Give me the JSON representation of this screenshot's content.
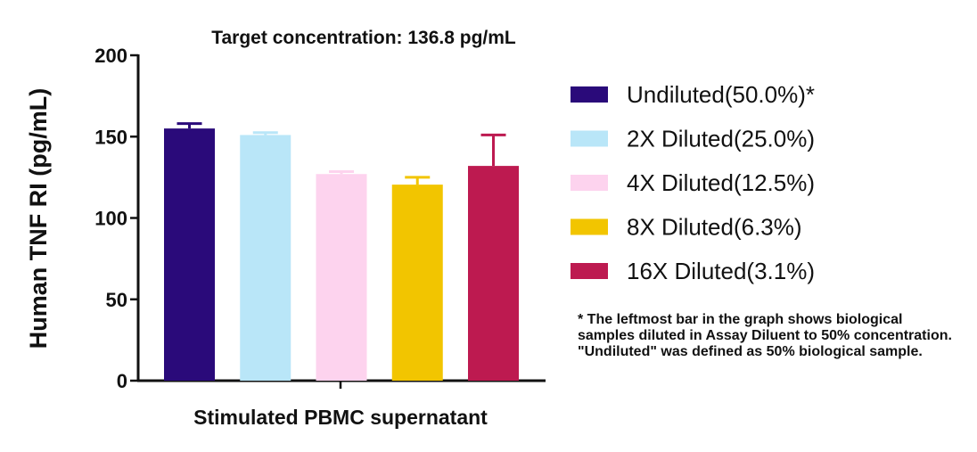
{
  "chart_data": {
    "type": "bar",
    "title": "Target concentration: 136.8 pg/mL",
    "xlabel": "Stimulated PBMC supernatant",
    "ylabel": "Human TNF RI (pg/mL)",
    "ylim": [
      0,
      200
    ],
    "yticks": [
      0,
      50,
      100,
      150,
      200
    ],
    "grid": false,
    "legend_position": "right",
    "series": [
      {
        "name": "Undiluted(50.0%)*",
        "value": 155,
        "error": 3,
        "color": "#2a0a7a"
      },
      {
        "name": "2X Diluted(25.0%)",
        "value": 151,
        "error": 1.5,
        "color": "#b9e6f8"
      },
      {
        "name": "4X Diluted(12.5%)",
        "value": 127,
        "error": 1.5,
        "color": "#fdd3ee"
      },
      {
        "name": "8X Diluted(6.3%)",
        "value": 120.5,
        "error": 4.5,
        "color": "#f2c500"
      },
      {
        "name": "16X Diluted(3.1%)",
        "value": 132,
        "error": 19,
        "color": "#bd1a50"
      }
    ],
    "footnote": "* The leftmost bar in the graph shows biological samples diluted in Assay Diluent to 50% concentration. \"Undiluted\" was defined as 50% biological sample."
  }
}
